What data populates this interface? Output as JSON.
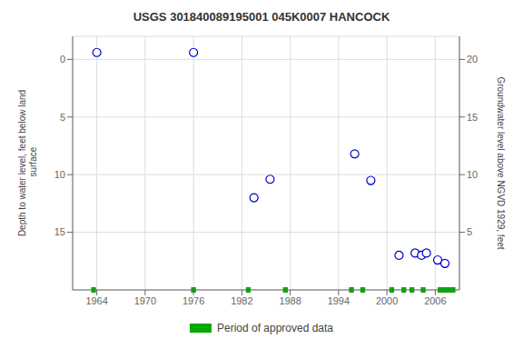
{
  "chart_data": {
    "type": "scatter",
    "title": "USGS 301840089195001 045K0007  HANCOCK",
    "ylabel": "Depth to water level, feet below land\n surface",
    "y2label": "Groundwater level above NGVD 1929, feet",
    "x": [
      1964.0,
      1976.0,
      1983.5,
      1985.5,
      1996.0,
      1998.0,
      2001.5,
      2003.5,
      2004.3,
      2004.9,
      2006.3,
      2007.2
    ],
    "values": [
      -0.6,
      -0.6,
      12.0,
      10.4,
      8.2,
      10.5,
      17.0,
      16.8,
      17.0,
      16.8,
      17.4,
      17.7
    ],
    "color": "#0000cc",
    "marker": "hollow",
    "xlim": [
      1961,
      2009
    ],
    "xticks": [
      1964,
      1970,
      1976,
      1982,
      1988,
      1994,
      2000,
      2006
    ],
    "ylim": [
      20,
      -2
    ],
    "yticks": [
      0,
      5,
      10,
      15
    ],
    "y2lim": [
      0,
      22
    ],
    "y2ticks": [
      5,
      10,
      15,
      20
    ],
    "grid": true,
    "legend": "bottom",
    "spans": [
      {
        "name": "Period of approved data",
        "color": "#00aa00",
        "ranges": [
          [
            1963.3,
            1963.9
          ],
          [
            1975.7,
            1976.3
          ],
          [
            1982.5,
            1983.1
          ],
          [
            1987.1,
            1987.7
          ],
          [
            1995.3,
            1995.9
          ],
          [
            1996.7,
            1997.3
          ],
          [
            2000.3,
            2000.9
          ],
          [
            2001.8,
            2002.4
          ],
          [
            2002.8,
            2003.4
          ],
          [
            2004.2,
            2004.8
          ],
          [
            2006.3,
            2008.5
          ]
        ]
      }
    ]
  }
}
